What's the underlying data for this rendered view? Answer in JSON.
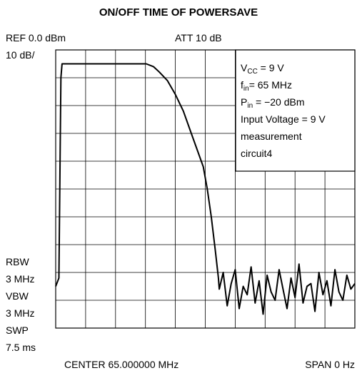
{
  "chart_data": {
    "type": "line",
    "title": "ON/OFF TIME OF POWERSAVE",
    "header_left": "REF 0.0 dBm",
    "header_center": "ATT 10 dB",
    "scale_label": "10 dB/",
    "side_labels": [
      "RBW",
      "3 MHz",
      "VBW",
      "3 MHz",
      "SWP",
      "7.5 ms"
    ],
    "footer_left": "CENTER 65.000000 MHz",
    "footer_right": "SPAN 0 Hz",
    "annotation": [
      {
        "main": "V",
        "sub": "CC",
        "rest": " = 9 V"
      },
      {
        "main": "f",
        "sub": "in",
        "rest": "= 65 MHz"
      },
      {
        "main": "P",
        "sub": "in",
        "rest": " = −20 dBm"
      },
      {
        "main": "Input Voltage = 9 V"
      },
      {
        "main": "measurement"
      },
      {
        "main": "circuit4"
      }
    ],
    "color": "#000000",
    "grid": true,
    "xlim": [
      0,
      7.5
    ],
    "ylim": [
      -100,
      0
    ],
    "xticks": [
      0,
      0.75,
      1.5,
      2.25,
      3,
      3.75,
      4.5,
      5.25,
      6,
      6.75,
      7.5
    ],
    "yticks": [
      -100,
      -90,
      -80,
      -70,
      -60,
      -50,
      -40,
      -30,
      -20,
      -10,
      0
    ],
    "x": [
      0,
      0.08,
      0.13,
      0.16,
      0.3,
      1.0,
      2.0,
      2.27,
      2.45,
      2.6,
      2.8,
      3.0,
      3.2,
      3.4,
      3.55,
      3.7,
      3.8,
      3.9,
      4.0,
      4.08,
      4.1,
      4.2,
      4.3,
      4.4,
      4.5,
      4.6,
      4.7,
      4.8,
      4.9,
      5.0,
      5.1,
      5.2,
      5.3,
      5.4,
      5.5,
      5.6,
      5.7,
      5.8,
      5.9,
      6.0,
      6.1,
      6.2,
      6.3,
      6.4,
      6.5,
      6.6,
      6.7,
      6.8,
      6.9,
      7.0,
      7.1,
      7.2,
      7.3,
      7.4,
      7.5
    ],
    "values": [
      -85,
      -82,
      -10,
      -5,
      -5,
      -5,
      -5,
      -5,
      -6,
      -8,
      -11,
      -16,
      -22,
      -30,
      -36,
      -42,
      -50,
      -60,
      -72,
      -82,
      -86,
      -80,
      -92,
      -84,
      -79,
      -93,
      -85,
      -88,
      -78,
      -91,
      -83,
      -95,
      -81,
      -87,
      -90,
      -79,
      -86,
      -93,
      -82,
      -89,
      -77,
      -91,
      -85,
      -84,
      -94,
      -80,
      -88,
      -83,
      -92,
      -79,
      -87,
      -90,
      -81,
      -86,
      -84
    ]
  }
}
